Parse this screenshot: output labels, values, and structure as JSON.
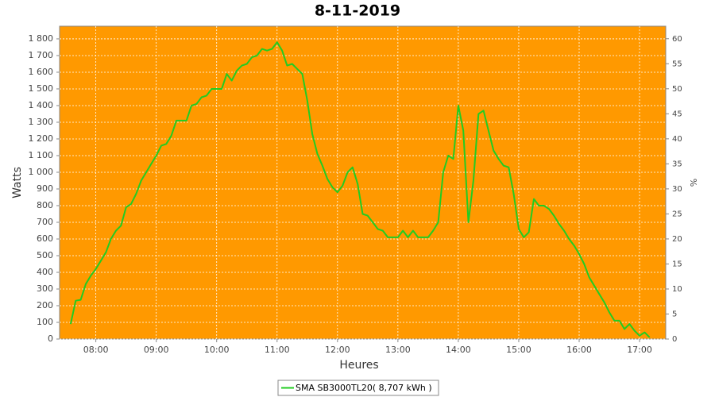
{
  "chart_data": {
    "type": "line",
    "title": "8-11-2019",
    "x_label": "Heures",
    "y_label": "Watts",
    "y2_label": "%",
    "x": [
      "07:35",
      "07:40",
      "07:45",
      "07:50",
      "07:55",
      "08:00",
      "08:05",
      "08:10",
      "08:15",
      "08:20",
      "08:25",
      "08:30",
      "08:35",
      "08:40",
      "08:45",
      "08:50",
      "08:55",
      "09:00",
      "09:05",
      "09:10",
      "09:15",
      "09:20",
      "09:25",
      "09:30",
      "09:35",
      "09:40",
      "09:45",
      "09:50",
      "09:55",
      "10:00",
      "10:05",
      "10:10",
      "10:15",
      "10:20",
      "10:25",
      "10:30",
      "10:35",
      "10:40",
      "10:45",
      "10:50",
      "10:55",
      "11:00",
      "11:05",
      "11:10",
      "11:15",
      "11:20",
      "11:25",
      "11:30",
      "11:35",
      "11:40",
      "11:45",
      "11:50",
      "11:55",
      "12:00",
      "12:05",
      "12:10",
      "12:15",
      "12:20",
      "12:25",
      "12:30",
      "12:35",
      "12:40",
      "12:45",
      "12:50",
      "12:55",
      "13:00",
      "13:05",
      "13:10",
      "13:15",
      "13:20",
      "13:25",
      "13:30",
      "13:35",
      "13:40",
      "13:45",
      "13:50",
      "13:55",
      "14:00",
      "14:05",
      "14:10",
      "14:15",
      "14:20",
      "14:25",
      "14:30",
      "14:35",
      "14:40",
      "14:45",
      "14:50",
      "14:55",
      "15:00",
      "15:05",
      "15:10",
      "15:15",
      "15:20",
      "15:25",
      "15:30",
      "15:35",
      "15:40",
      "15:45",
      "15:50",
      "15:55",
      "16:00",
      "16:05",
      "16:10",
      "16:15",
      "16:20",
      "16:25",
      "16:30",
      "16:35",
      "16:40",
      "16:45",
      "16:50",
      "16:55",
      "17:00",
      "17:05",
      "17:10"
    ],
    "series": [
      {
        "name": "SMA SB3000TL20( 8,707 kWh )",
        "color": "#22cc22",
        "values": [
          90,
          230,
          235,
          330,
          380,
          420,
          470,
          520,
          600,
          650,
          680,
          790,
          810,
          870,
          950,
          1000,
          1050,
          1100,
          1160,
          1170,
          1220,
          1310,
          1310,
          1310,
          1400,
          1410,
          1450,
          1460,
          1500,
          1500,
          1500,
          1590,
          1550,
          1610,
          1640,
          1650,
          1690,
          1700,
          1740,
          1730,
          1740,
          1780,
          1730,
          1640,
          1650,
          1620,
          1590,
          1430,
          1230,
          1110,
          1040,
          960,
          910,
          880,
          920,
          1000,
          1030,
          930,
          750,
          740,
          700,
          660,
          650,
          610,
          610,
          610,
          650,
          610,
          650,
          610,
          610,
          610,
          650,
          700,
          1000,
          1100,
          1080,
          1400,
          1250,
          700,
          950,
          1350,
          1370,
          1250,
          1130,
          1080,
          1040,
          1030,
          870,
          660,
          610,
          640,
          840,
          800,
          800,
          780,
          740,
          690,
          650,
          600,
          560,
          510,
          450,
          370,
          320,
          270,
          220,
          160,
          110,
          110,
          60,
          90,
          50,
          20,
          40,
          10
        ]
      }
    ],
    "xlim": [
      "07:24",
      "17:26"
    ],
    "xticks": [
      "08:00",
      "09:00",
      "10:00",
      "11:00",
      "12:00",
      "13:00",
      "14:00",
      "15:00",
      "16:00",
      "17:00"
    ],
    "ylim": [
      0,
      1876
    ],
    "yticks": [
      0,
      100,
      200,
      300,
      400,
      500,
      600,
      700,
      800,
      900,
      {
        "value": 1000,
        "label": "1 000"
      },
      {
        "value": 1100,
        "label": "1 100"
      },
      {
        "value": 1200,
        "label": "1 200"
      },
      {
        "value": 1300,
        "label": "1 300"
      },
      {
        "value": 1400,
        "label": "1 400"
      },
      {
        "value": 1500,
        "label": "1 500"
      },
      {
        "value": 1600,
        "label": "1 600"
      },
      {
        "value": 1700,
        "label": "1 700"
      },
      {
        "value": 1800,
        "label": "1 800"
      }
    ],
    "y2lim": [
      0,
      62.5
    ],
    "y2ticks": [
      0,
      5,
      10,
      15,
      20,
      25,
      30,
      35,
      40,
      45,
      50,
      55,
      60
    ],
    "grid": true,
    "plot_background": "#ff9900",
    "legend": "bottom"
  }
}
